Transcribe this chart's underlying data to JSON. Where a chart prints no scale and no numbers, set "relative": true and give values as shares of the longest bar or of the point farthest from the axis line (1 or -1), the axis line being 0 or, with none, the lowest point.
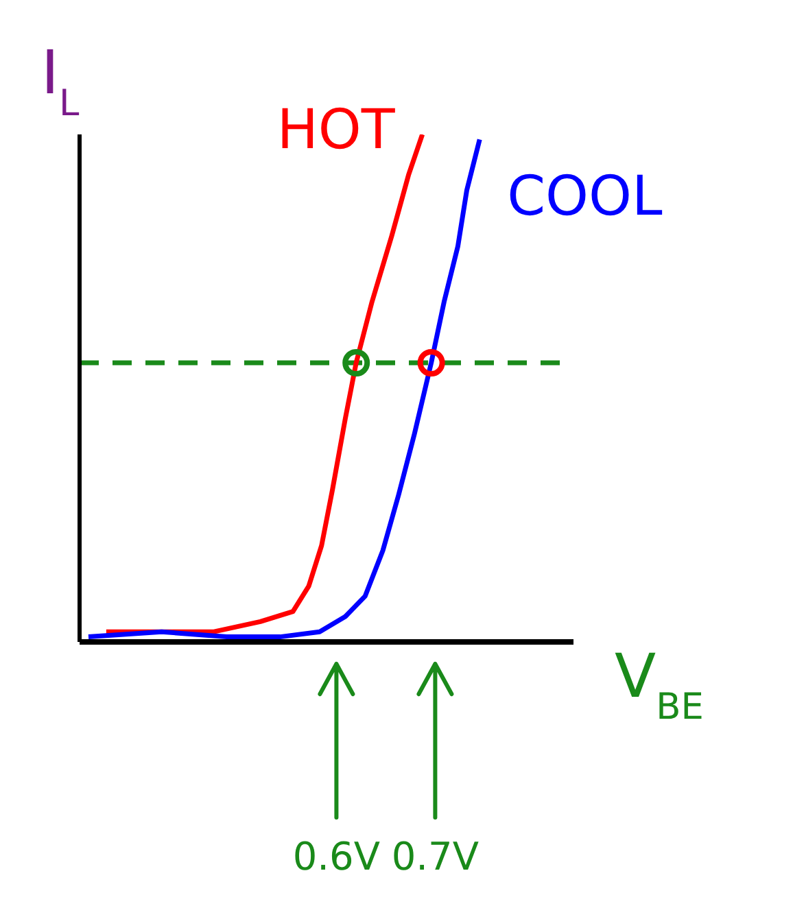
{
  "chart_data": {
    "type": "line",
    "relative": true,
    "xlabel": "V$_{BE}$",
    "ylabel": "I$_{L}$",
    "xlim": [
      0.34,
      0.84
    ],
    "xticks": [
      {
        "value": 0.6,
        "label": "0.6V"
      },
      {
        "value": 0.7,
        "label": "0.7V"
      }
    ],
    "grid": false,
    "legend": false,
    "marker": "none",
    "line_style": "solid",
    "ref_lines": [
      {
        "axis": "y",
        "value": 0.55,
        "color": "#1a8a1a",
        "line_style": "dashed"
      }
    ],
    "series": [
      {
        "name": "HOT",
        "color": "#ff0000",
        "x": [
          0.367,
          0.409,
          0.476,
          0.523,
          0.556,
          0.572,
          0.585,
          0.596,
          0.609,
          0.62,
          0.636,
          0.656,
          0.673,
          0.687
        ],
        "values": [
          0.02,
          0.02,
          0.02,
          0.04,
          0.06,
          0.11,
          0.19,
          0.3,
          0.44,
          0.55,
          0.67,
          0.8,
          0.92,
          1
        ]
      },
      {
        "name": "COOL",
        "color": "#0000ff",
        "x": [
          0.349,
          0.423,
          0.489,
          0.543,
          0.583,
          0.609,
          0.629,
          0.647,
          0.663,
          0.679,
          0.696,
          0.709,
          0.723,
          0.732,
          0.745
        ],
        "values": [
          0.01,
          0.02,
          0.01,
          0.01,
          0.02,
          0.05,
          0.09,
          0.18,
          0.29,
          0.41,
          0.55,
          0.67,
          0.78,
          0.89,
          0.99
        ]
      },
      {
        "type": "scatter",
        "marker": "circle",
        "colors": [
          "#1a8a1a",
          "#ff0000"
        ],
        "x": [
          0.62,
          0.696
        ],
        "values": [
          0.55,
          0.55
        ]
      }
    ]
  }
}
